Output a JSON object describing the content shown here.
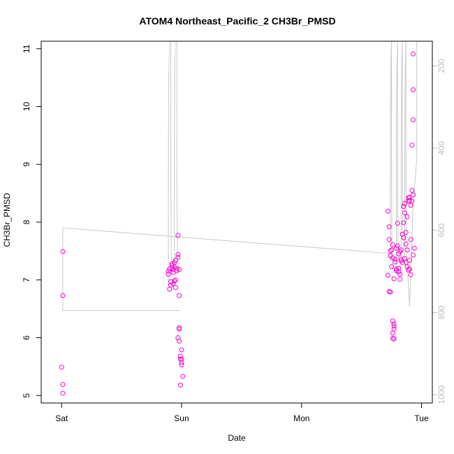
{
  "chart_data": {
    "type": "scatter",
    "title": "ATOM4 Northeast_Pacific_2 CH3Br_PMSD",
    "xlabel": "Date",
    "ylabel": "CH3Br_PMSD",
    "x_ticks": [
      "Sat",
      "Sun",
      "Mon",
      "Tue"
    ],
    "x_tick_values": [
      0,
      1,
      2,
      3
    ],
    "xlim": [
      -0.17,
      3.09
    ],
    "ylim": [
      4.87,
      11.13
    ],
    "y_ticks": [
      5,
      6,
      7,
      8,
      9,
      10,
      11
    ],
    "right_axis": {
      "ticks": [
        200,
        400,
        600,
        800,
        1000
      ],
      "ylim": [
        1020,
        140
      ],
      "color": "#bdbdbd",
      "description": "altitude-like secondary axis for grey flight track"
    },
    "point_color": "#ff00cc",
    "grid": false,
    "series": [
      {
        "values": [
          [
            0.01,
            7.49
          ],
          [
            0.01,
            6.73
          ],
          [
            0.0,
            5.49
          ],
          [
            0.01,
            5.19
          ],
          [
            0.01,
            5.04
          ],
          [
            0.89,
            7.1
          ],
          [
            0.89,
            7.15
          ],
          [
            0.9,
            7.19
          ],
          [
            0.9,
            6.84
          ],
          [
            0.91,
            6.91
          ],
          [
            0.91,
            6.97
          ],
          [
            0.92,
            7.21
          ],
          [
            0.92,
            7.25
          ],
          [
            0.92,
            7.28
          ],
          [
            0.93,
            6.93
          ],
          [
            0.93,
            7.18
          ],
          [
            0.93,
            7.13
          ],
          [
            0.94,
            7.3
          ],
          [
            0.94,
            7.22
          ],
          [
            0.94,
            6.98
          ],
          [
            0.95,
            6.87
          ],
          [
            0.95,
            7.0
          ],
          [
            0.95,
            7.34
          ],
          [
            0.96,
            7.16
          ],
          [
            0.96,
            7.2
          ],
          [
            0.97,
            7.44
          ],
          [
            0.97,
            7.77
          ],
          [
            0.97,
            7.39
          ],
          [
            0.98,
            7.18
          ],
          [
            0.98,
            6.73
          ],
          [
            0.97,
            6.0
          ],
          [
            0.98,
            6.17
          ],
          [
            0.98,
            6.15
          ],
          [
            0.98,
            5.94
          ],
          [
            0.99,
            5.68
          ],
          [
            0.99,
            5.63
          ],
          [
            1.0,
            5.79
          ],
          [
            1.0,
            5.57
          ],
          [
            1.0,
            5.53
          ],
          [
            1.01,
            5.33
          ],
          [
            0.99,
            5.18
          ],
          [
            1.0,
            5.63
          ],
          [
            2.72,
            8.19
          ],
          [
            2.72,
            7.08
          ],
          [
            2.73,
            7.92
          ],
          [
            2.73,
            7.7
          ],
          [
            2.74,
            7.42
          ],
          [
            2.74,
            7.5
          ],
          [
            2.75,
            7.23
          ],
          [
            2.75,
            7.52
          ],
          [
            2.76,
            7.61
          ],
          [
            2.76,
            7.38
          ],
          [
            2.73,
            6.8
          ],
          [
            2.74,
            6.79
          ],
          [
            2.76,
            6.29
          ],
          [
            2.77,
            6.24
          ],
          [
            2.77,
            6.2
          ],
          [
            2.77,
            6.15
          ],
          [
            2.76,
            6.08
          ],
          [
            2.76,
            5.99
          ],
          [
            2.77,
            5.98
          ],
          [
            2.77,
            7.02
          ],
          [
            2.78,
            7.36
          ],
          [
            2.78,
            7.31
          ],
          [
            2.79,
            7.19
          ],
          [
            2.79,
            7.16
          ],
          [
            2.79,
            7.55
          ],
          [
            2.8,
            7.98
          ],
          [
            2.8,
            7.59
          ],
          [
            2.81,
            7.14
          ],
          [
            2.81,
            7.45
          ],
          [
            2.81,
            7.2
          ],
          [
            2.82,
            7.1
          ],
          [
            2.82,
            7.49
          ],
          [
            2.82,
            7.01
          ],
          [
            2.83,
            7.36
          ],
          [
            2.83,
            7.33
          ],
          [
            2.83,
            7.52
          ],
          [
            2.84,
            7.79
          ],
          [
            2.84,
            7.3
          ],
          [
            2.85,
            7.73
          ],
          [
            2.85,
            8.27
          ],
          [
            2.85,
            7.99
          ],
          [
            2.86,
            8.32
          ],
          [
            2.86,
            8.16
          ],
          [
            2.86,
            7.37
          ],
          [
            2.87,
            7.3
          ],
          [
            2.87,
            7.62
          ],
          [
            2.87,
            7.82
          ],
          [
            2.88,
            8.09
          ],
          [
            2.88,
            7.52
          ],
          [
            2.88,
            7.23
          ],
          [
            2.89,
            7.17
          ],
          [
            2.89,
            8.37
          ],
          [
            2.89,
            8.42
          ],
          [
            2.9,
            8.43
          ],
          [
            2.9,
            8.37
          ],
          [
            2.9,
            7.34
          ],
          [
            2.9,
            7.19
          ],
          [
            2.91,
            7.09
          ],
          [
            2.91,
            7.7
          ],
          [
            2.91,
            8.29
          ],
          [
            2.92,
            8.55
          ],
          [
            2.92,
            8.36
          ],
          [
            2.92,
            9.33
          ],
          [
            2.93,
            9.77
          ],
          [
            2.93,
            10.29
          ],
          [
            2.93,
            10.91
          ],
          [
            2.93,
            8.47
          ],
          [
            2.94,
            7.55
          ],
          [
            2.93,
            7.43
          ]
        ]
      }
    ]
  }
}
